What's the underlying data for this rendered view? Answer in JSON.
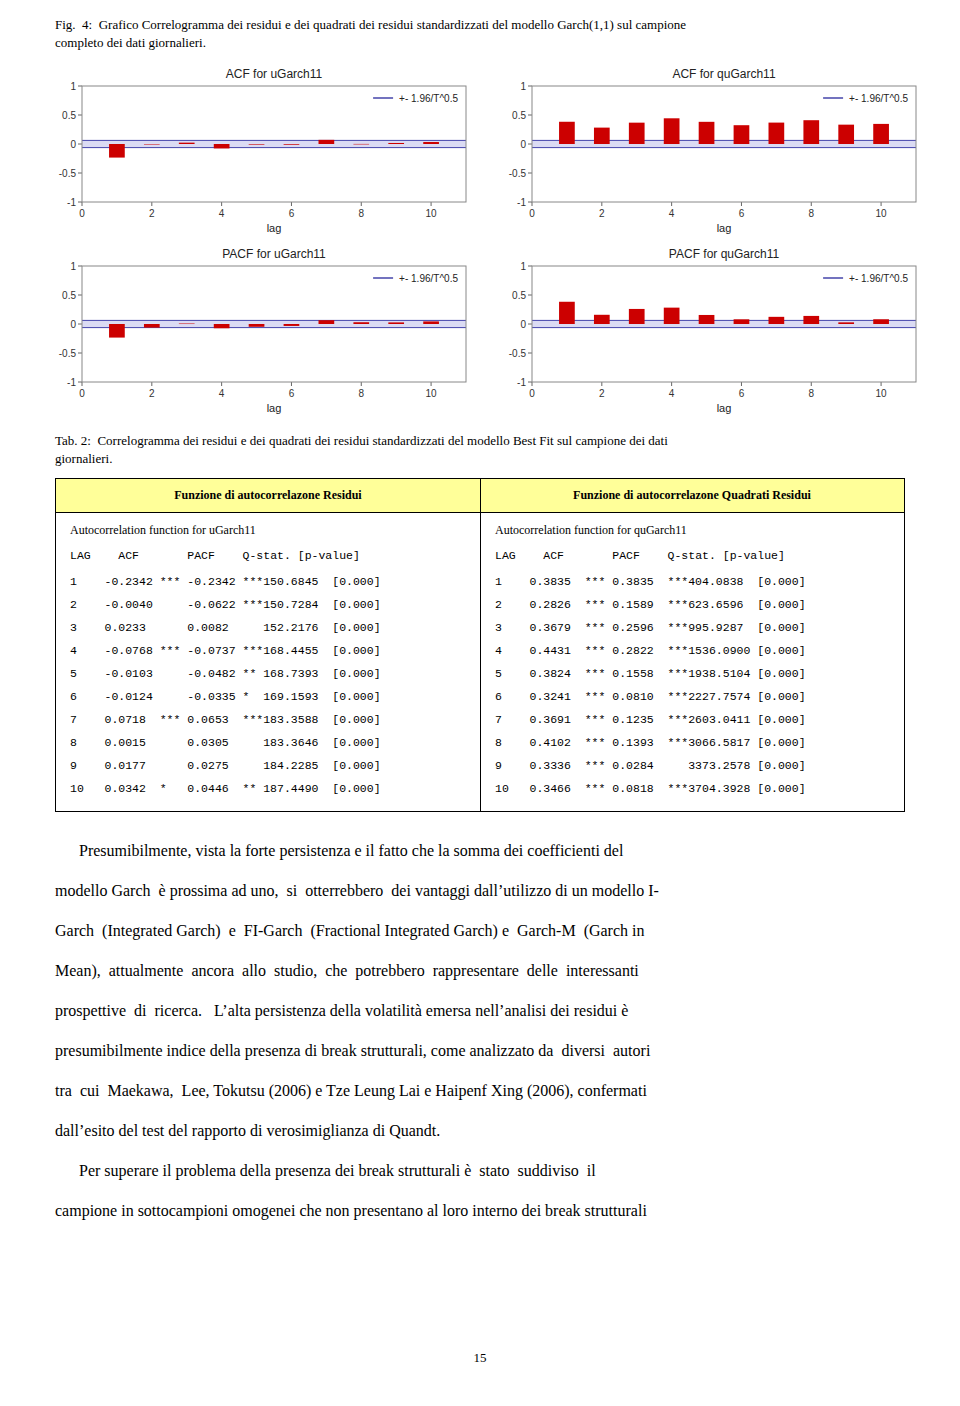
{
  "chart_data": [
    {
      "type": "bar",
      "title": "ACF for uGarch11",
      "x_label": "lag",
      "x": [
        1,
        2,
        3,
        4,
        5,
        6,
        7,
        8,
        9,
        10
      ],
      "values": [
        -0.2342,
        -0.004,
        0.0233,
        -0.0768,
        -0.0103,
        -0.0124,
        0.0718,
        0.0015,
        0.0177,
        0.0342
      ],
      "color": "#cc0000",
      "xlim": [
        0,
        11
      ],
      "xticks": [
        0,
        2,
        4,
        6,
        8,
        10
      ],
      "ylim": [
        -1,
        1
      ],
      "yticks": [
        -1,
        -0.5,
        0,
        0.5,
        1
      ],
      "grid": false,
      "legend": "upper right",
      "conf_band": {
        "name": "+- 1.96/T^0.5",
        "value": 0.062,
        "color": "#4444aa",
        "fill_color": "#ccccee"
      }
    },
    {
      "type": "bar",
      "title": "ACF for quGarch11",
      "x_label": "lag",
      "x": [
        1,
        2,
        3,
        4,
        5,
        6,
        7,
        8,
        9,
        10
      ],
      "values": [
        0.3835,
        0.2826,
        0.3679,
        0.4431,
        0.3824,
        0.3241,
        0.3691,
        0.4102,
        0.3336,
        0.3466
      ],
      "color": "#cc0000",
      "xlim": [
        0,
        11
      ],
      "xticks": [
        0,
        2,
        4,
        6,
        8,
        10
      ],
      "ylim": [
        -1,
        1
      ],
      "yticks": [
        -1,
        -0.5,
        0,
        0.5,
        1
      ],
      "grid": false,
      "legend": "upper right",
      "conf_band": {
        "name": "+- 1.96/T^0.5",
        "value": 0.062,
        "color": "#4444aa",
        "fill_color": "#ccccee"
      }
    },
    {
      "type": "bar",
      "title": "PACF for uGarch11",
      "x_label": "lag",
      "x": [
        1,
        2,
        3,
        4,
        5,
        6,
        7,
        8,
        9,
        10
      ],
      "values": [
        -0.2342,
        -0.0622,
        0.0082,
        -0.0737,
        -0.0482,
        -0.0335,
        0.0653,
        0.0305,
        0.0275,
        0.0446
      ],
      "color": "#cc0000",
      "xlim": [
        0,
        11
      ],
      "xticks": [
        0,
        2,
        4,
        6,
        8,
        10
      ],
      "ylim": [
        -1,
        1
      ],
      "yticks": [
        -1,
        -0.5,
        0,
        0.5,
        1
      ],
      "grid": false,
      "legend": "upper right",
      "conf_band": {
        "name": "+- 1.96/T^0.5",
        "value": 0.062,
        "color": "#4444aa",
        "fill_color": "#ccccee"
      }
    },
    {
      "type": "bar",
      "title": "PACF for quGarch11",
      "x_label": "lag",
      "x": [
        1,
        2,
        3,
        4,
        5,
        6,
        7,
        8,
        9,
        10
      ],
      "values": [
        0.3835,
        0.1589,
        0.2596,
        0.2822,
        0.1558,
        0.081,
        0.1235,
        0.1393,
        0.0284,
        0.0818
      ],
      "color": "#cc0000",
      "xlim": [
        0,
        11
      ],
      "xticks": [
        0,
        2,
        4,
        6,
        8,
        10
      ],
      "ylim": [
        -1,
        1
      ],
      "yticks": [
        -1,
        -0.5,
        0,
        0.5,
        1
      ],
      "grid": false,
      "legend": "upper right",
      "conf_band": {
        "name": "+- 1.96/T^0.5",
        "value": 0.062,
        "color": "#4444aa",
        "fill_color": "#ccccee"
      }
    }
  ],
  "fig_title": "Fig.  4:  Grafico Correlogramma dei residui e dei quadrati dei residui standardizzati del modello Garch(1,1) sul campione\ncompleto dei dati giornalieri.",
  "tab_title": "Tab. 2:  Correlogramma dei residui e dei quadrati dei residui standardizzati del modello Best Fit sul campione dei dati\ngiornalieri.",
  "table": {
    "header_left": "Funzione di autocorrelazone Residui",
    "header_right": "Funzione di autocorrelazone Quadrati Residui",
    "header_color": "#ffff99",
    "border_color": "#000000",
    "left_subtitle": "Autocorrelation function for uGarch11",
    "right_subtitle": "Autocorrelation function for quGarch11",
    "column_header": "LAG    ACF       PACF    Q-stat. [p-value]",
    "left_rows": [
      [
        "1",
        "-0.2342",
        "***",
        "-0.2342",
        "***",
        "150.6845",
        "[0.000]"
      ],
      [
        "2",
        "-0.0040",
        null,
        "-0.0622",
        "***",
        "150.7284",
        "[0.000]"
      ],
      [
        "3",
        "0.0233",
        null,
        "0.0082",
        null,
        "152.2176",
        "[0.000]"
      ],
      [
        "4",
        "-0.0768",
        "***",
        "-0.0737",
        "***",
        "168.4455",
        "[0.000]"
      ],
      [
        "5",
        "-0.0103",
        null,
        "-0.0482",
        "**",
        "168.7393",
        "[0.000]"
      ],
      [
        "6",
        "-0.0124",
        null,
        "-0.0335",
        "*",
        "169.1593",
        "[0.000]"
      ],
      [
        "7",
        "0.0718",
        "***",
        "0.0653",
        "***",
        "183.3588",
        "[0.000]"
      ],
      [
        "8",
        "0.0015",
        null,
        "0.0305",
        null,
        "183.3646",
        "[0.000]"
      ],
      [
        "9",
        "0.0177",
        null,
        "0.0275",
        null,
        "184.2285",
        "[0.000]"
      ],
      [
        "10",
        "0.0342",
        "*",
        "0.0446",
        "**",
        "187.4490",
        "[0.000]"
      ]
    ],
    "right_rows": [
      [
        "1",
        "0.3835",
        "***",
        "0.3835",
        "***",
        "404.0838",
        "[0.000]"
      ],
      [
        "2",
        "0.2826",
        "***",
        "0.1589",
        "***",
        "623.6596",
        "[0.000]"
      ],
      [
        "3",
        "0.3679",
        "***",
        "0.2596",
        "***",
        "995.9287",
        "[0.000]"
      ],
      [
        "4",
        "0.4431",
        "***",
        "0.2822",
        "***",
        "1536.0900",
        "[0.000]"
      ],
      [
        "5",
        "0.3824",
        "***",
        "0.1558",
        "***",
        "1938.5104",
        "[0.000]"
      ],
      [
        "6",
        "0.3241",
        "***",
        "0.0810",
        "***",
        "2227.7574",
        "[0.000]"
      ],
      [
        "7",
        "0.3691",
        "***",
        "0.1235",
        "***",
        "2603.0411",
        "[0.000]"
      ],
      [
        "8",
        "0.4102",
        "***",
        "0.1393",
        "***",
        "3066.5817",
        "[0.000]"
      ],
      [
        "9",
        "0.3336",
        "***",
        "0.0284",
        null,
        "3373.2578",
        "[0.000]"
      ],
      [
        "10",
        "0.3466",
        "***",
        "0.0818",
        "***",
        "3704.3928",
        "[0.000]"
      ]
    ]
  },
  "body_text": [
    "      Presumibilmente, vista la forte persistenza e il fatto che la somma dei coefficienti del",
    "modello Garch  è prossima ad uno,  si  otterrebbero  dei vantaggi dall’utilizzo di un modello I-",
    "Garch  (Integrated Garch)  e  FI-Garch  (Fractional Integrated Garch) e  Garch-M  (Garch in",
    "Mean),  attualmente  ancora  allo  studio,  che  potrebbero  rappresentare  delle  interessanti",
    "prospettive  di  ricerca.   L’alta persistenza della volatilità emersa nell’analisi dei residui è",
    "presumibilmente indice della presenza di break strutturali, come analizzato da  diversi  autori",
    "tra  cui  Maekawa,  Lee, Tokutsu (2006) e Tze Leung Lai e Haipenf Xing (2006), confermati",
    "dall’esito del test del rapporto di verosimiglianza di Quandt.",
    "      Per superare il problema della presenza dei break strutturali è  stato  suddiviso  il",
    "campione in sottocampioni omogenei che non presentano al loro interno dei break strutturali"
  ],
  "page_number": "15"
}
